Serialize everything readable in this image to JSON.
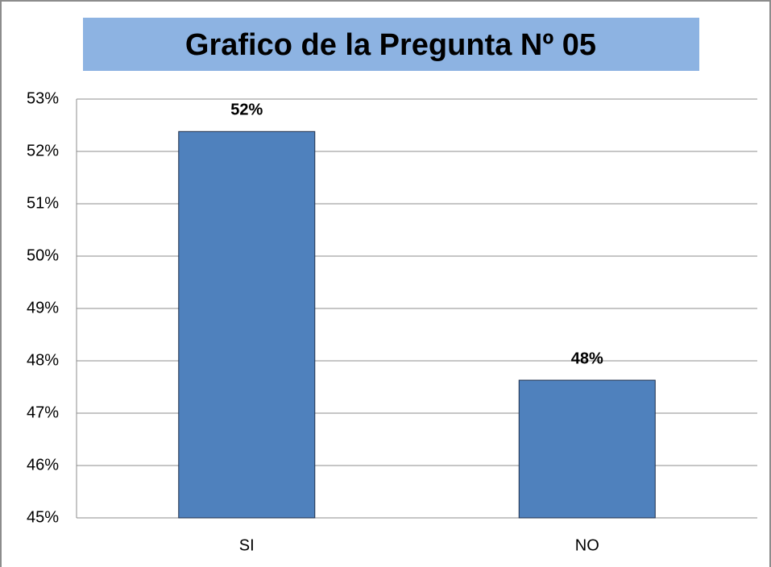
{
  "chart_data": {
    "type": "bar",
    "title": "Grafico de la Pregunta Nº 05",
    "categories": [
      "SI",
      "NO"
    ],
    "values": [
      52.38,
      47.63
    ],
    "value_labels": [
      "52%",
      "48%"
    ],
    "color": "#4f81bd",
    "ylim": [
      45,
      53
    ],
    "yticks": [
      {
        "value": 45,
        "label": "45%"
      },
      {
        "value": 46,
        "label": "46%"
      },
      {
        "value": 47,
        "label": "47%"
      },
      {
        "value": 48,
        "label": "48%"
      },
      {
        "value": 49,
        "label": "49%"
      },
      {
        "value": 50,
        "label": "50%"
      },
      {
        "value": 51,
        "label": "51%"
      },
      {
        "value": 52,
        "label": "52%"
      },
      {
        "value": 53,
        "label": "53%"
      }
    ],
    "grid": true
  }
}
